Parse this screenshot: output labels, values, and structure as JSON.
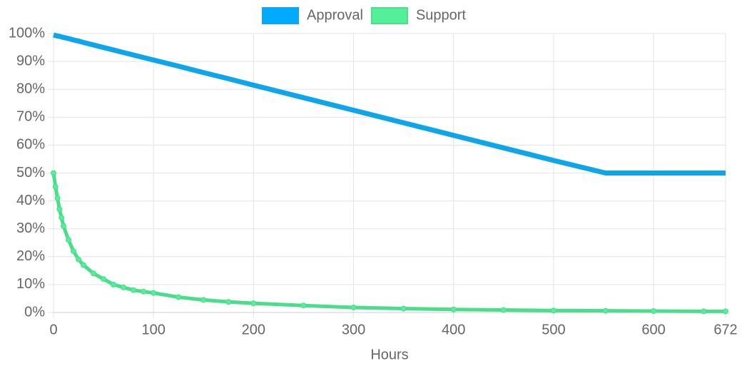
{
  "chart_data": {
    "type": "line",
    "x_label": "Hours",
    "x": [
      0,
      2,
      4,
      6,
      8,
      10,
      15,
      20,
      25,
      30,
      40,
      50,
      60,
      70,
      80,
      90,
      100,
      125,
      150,
      175,
      200,
      250,
      300,
      350,
      400,
      450,
      500,
      552,
      600,
      650,
      672
    ],
    "series": [
      {
        "name": "Approval",
        "color": "#0ea5ea",
        "legend_fill": "#00aaff",
        "values": [
          99.5,
          99.3,
          99.1,
          99,
          98.8,
          98.6,
          98.2,
          97.7,
          97.3,
          96.8,
          95.9,
          95,
          94.1,
          93.2,
          92.3,
          91.4,
          90.5,
          88.3,
          86,
          83.8,
          81.5,
          77,
          72.5,
          68,
          63.5,
          59,
          54.5,
          50,
          50,
          50,
          50
        ]
      },
      {
        "name": "Support",
        "color": "#4bdc8c",
        "legend_fill": "#55ee99",
        "values": [
          50,
          45,
          41,
          37,
          34,
          31,
          26,
          22,
          19,
          17,
          14,
          12,
          10,
          9,
          8,
          7.5,
          7,
          5.5,
          4.5,
          3.8,
          3.3,
          2.5,
          1.8,
          1.4,
          1.1,
          0.9,
          0.7,
          0.6,
          0.5,
          0.4,
          0.4
        ]
      }
    ],
    "xlim": [
      0,
      672
    ],
    "xticks": [
      0,
      100,
      200,
      300,
      400,
      500,
      600,
      672
    ],
    "ylim": [
      0,
      100
    ],
    "yticks": [
      {
        "value": 0,
        "label": "0%"
      },
      {
        "value": 10,
        "label": "10%"
      },
      {
        "value": 20,
        "label": "20%"
      },
      {
        "value": 30,
        "label": "30%"
      },
      {
        "value": 40,
        "label": "40%"
      },
      {
        "value": 50,
        "label": "50%"
      },
      {
        "value": 60,
        "label": "60%"
      },
      {
        "value": 70,
        "label": "70%"
      },
      {
        "value": 80,
        "label": "80%"
      },
      {
        "value": 90,
        "label": "90%"
      },
      {
        "value": 100,
        "label": "100%"
      }
    ],
    "grid": true,
    "legend": "top"
  }
}
